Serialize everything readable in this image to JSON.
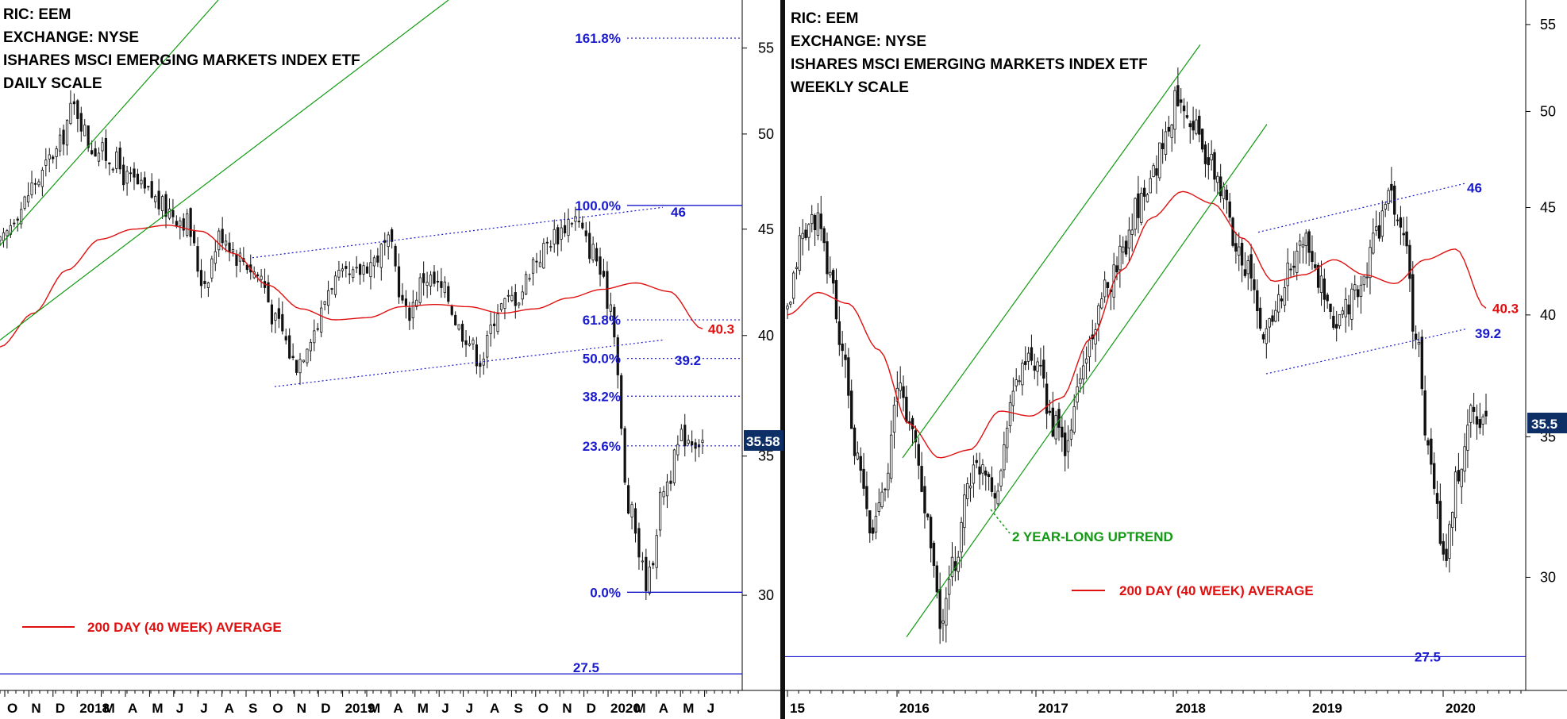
{
  "colors": {
    "price": "#111111",
    "moving_average": "#e01010",
    "channel": "#119a11",
    "trendline": "#1a1acd",
    "fib_line": "#1a1acd",
    "price_tag_bg": "#0d2f66"
  },
  "chart_data": [
    {
      "type": "candlestick",
      "panel": "left",
      "scale": "log",
      "header_lines": [
        "RIC: EEM",
        "EXCHANGE: NYSE",
        "ISHARES MSCI EMERGING MARKETS INDEX ETF",
        "DAILY SCALE"
      ],
      "ylim": [
        27,
        58
      ],
      "y_ticks": [
        30,
        35,
        40,
        45,
        50,
        55
      ],
      "x_ticks": [
        "O",
        "N",
        "D",
        "2018",
        "M",
        "A",
        "M",
        "J",
        "J",
        "A",
        "S",
        "O",
        "N",
        "D",
        "2019",
        "M",
        "A",
        "M",
        "J",
        "J",
        "A",
        "S",
        "O",
        "N",
        "D",
        "2020",
        "M",
        "A",
        "M",
        "J"
      ],
      "fib_levels": [
        {
          "label": "161.8%",
          "value": 55.6
        },
        {
          "label": "100.0%",
          "value": 46.2
        },
        {
          "label": "61.8%",
          "value": 40.7
        },
        {
          "label": "50.0%",
          "value": 39.0
        },
        {
          "label": "38.2%",
          "value": 37.4
        },
        {
          "label": "23.6%",
          "value": 35.4
        },
        {
          "label": "0.0%",
          "value": 30.1
        }
      ],
      "support_line": {
        "label": "27.5",
        "value": 27.5
      },
      "annotations": [
        {
          "text": "46",
          "value": 46.0,
          "kind": "channel_top"
        },
        {
          "text": "40.3",
          "value": 40.3,
          "kind": "moving_average"
        },
        {
          "text": "39.2",
          "value": 39.2,
          "kind": "channel_bottom"
        }
      ],
      "legend": "200 DAY (40 WEEK) AVERAGE",
      "last_price": "35.58",
      "close_series": [
        44.2,
        46.0,
        47.5,
        49.0,
        51.5,
        49.3,
        48.7,
        47.5,
        46.8,
        46.0,
        45.5,
        42.5,
        44.8,
        43.6,
        42.8,
        40.5,
        38.8,
        40.3,
        42.5,
        42.6,
        43.4,
        44.2,
        41.0,
        42.7,
        42.0,
        40.2,
        39.0,
        41.3,
        41.8,
        43.6,
        44.7,
        45.6,
        44.0,
        41.5,
        33.0,
        30.5,
        34.0,
        35.8,
        35.6
      ],
      "ma_series": [
        39.5,
        41.0,
        43.0,
        44.5,
        45.0,
        45.2,
        44.9,
        43.8,
        42.3,
        41.2,
        40.7,
        40.8,
        41.3,
        41.4,
        41.3,
        41.0,
        41.2,
        41.7,
        42.1,
        42.4,
        42.0,
        40.3
      ]
    },
    {
      "type": "candlestick",
      "panel": "right",
      "scale": "log",
      "header_lines": [
        "RIC: EEM",
        "EXCHANGE: NYSE",
        "ISHARES MSCI EMERGING MARKETS INDEX ETF",
        "WEEKLY SCALE"
      ],
      "ylim": [
        26.5,
        56.5
      ],
      "y_ticks": [
        30,
        35,
        40,
        45,
        50,
        55
      ],
      "x_ticks": [
        "15",
        "2016",
        "2017",
        "2018",
        "2019",
        "2020"
      ],
      "support_line": {
        "label": "27.5",
        "value": 27.5
      },
      "annotations": [
        {
          "text": "46",
          "value": 46.0,
          "kind": "channel_top"
        },
        {
          "text": "40.3",
          "value": 40.3,
          "kind": "moving_average"
        },
        {
          "text": "39.2",
          "value": 39.2,
          "kind": "channel_bottom"
        },
        {
          "text": "2 YEAR-LONG UPTREND",
          "kind": "channel_label"
        }
      ],
      "legend": "200 DAY (40 WEEK) AVERAGE",
      "last_price": "35.5",
      "close_series": [
        40.0,
        43.5,
        44.5,
        42.0,
        38.0,
        34.0,
        31.5,
        33.5,
        37.0,
        35.0,
        32.0,
        28.5,
        30.5,
        33.5,
        34.0,
        33.0,
        36.5,
        38.0,
        37.5,
        35.5,
        34.5,
        37.5,
        39.5,
        41.5,
        43.0,
        45.0,
        46.5,
        48.5,
        51.0,
        49.5,
        47.5,
        46.0,
        43.5,
        42.0,
        39.0,
        40.5,
        42.0,
        43.5,
        41.5,
        39.5,
        40.5,
        41.0,
        43.5,
        45.5,
        44.0,
        39.0,
        34.0,
        30.5,
        33.5,
        36.0,
        35.5
      ],
      "ma_series": [
        40.0,
        41.0,
        40.5,
        38.5,
        35.5,
        34.2,
        34.5,
        36.0,
        35.8,
        36.5,
        39.0,
        42.0,
        44.5,
        45.8,
        45.2,
        43.5,
        41.5,
        41.8,
        42.5,
        41.8,
        41.4,
        42.5,
        43.0,
        40.3
      ]
    }
  ]
}
